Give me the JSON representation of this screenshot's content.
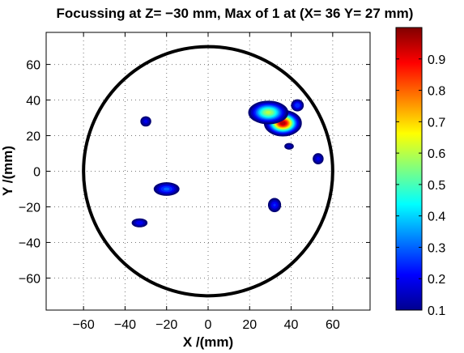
{
  "chart_data": {
    "type": "heatmap",
    "title": "Focussing at Z= −30 mm, Max of 1 at (X= 36 Y= 27 mm)",
    "xlabel": "X /(mm)",
    "ylabel": "Y /(mm)",
    "xlim": [
      -78,
      78
    ],
    "ylim": [
      -78,
      78
    ],
    "xticks": [
      -60,
      -40,
      -20,
      0,
      20,
      40,
      60
    ],
    "yticks": [
      -60,
      -40,
      -20,
      0,
      20,
      40,
      60
    ],
    "xtick_labels": [
      "−60",
      "−40",
      "−20",
      "0",
      "20",
      "40",
      "60"
    ],
    "ytick_labels": [
      "−60",
      "−40",
      "−20",
      "0",
      "20",
      "40",
      "60"
    ],
    "grid": true,
    "boundary_circle": {
      "center": [
        0,
        0
      ],
      "radius": 60
    },
    "colorbar": {
      "min": 0.1,
      "max": 1.0,
      "ticks": [
        0.1,
        0.2,
        0.3,
        0.4,
        0.5,
        0.6,
        0.7,
        0.8,
        0.9
      ],
      "tick_labels": [
        "0.1",
        "0.2",
        "0.3",
        "0.4",
        "0.5",
        "0.6",
        "0.7",
        "0.8",
        "0.9"
      ],
      "colormap": "jet"
    },
    "hotspots": [
      {
        "x": 36,
        "y": 27,
        "peak": 1.0,
        "sx": 4.2,
        "sy": 3.4
      },
      {
        "x": 29,
        "y": 33,
        "peak": 0.62,
        "sx": 5.0,
        "sy": 3.4
      },
      {
        "x": -20,
        "y": -10,
        "peak": 0.32,
        "sx": 4.0,
        "sy": 2.4
      },
      {
        "x": 32,
        "y": -19,
        "peak": 0.26,
        "sx": 2.2,
        "sy": 2.8
      },
      {
        "x": -33,
        "y": -29,
        "peak": 0.24,
        "sx": 2.8,
        "sy": 1.8
      },
      {
        "x": -30,
        "y": 28,
        "peak": 0.22,
        "sx": 2.0,
        "sy": 2.2
      },
      {
        "x": 53,
        "y": 7,
        "peak": 0.22,
        "sx": 2.0,
        "sy": 2.4
      },
      {
        "x": 39,
        "y": 14,
        "peak": 0.18,
        "sx": 2.0,
        "sy": 1.6
      },
      {
        "x": 43,
        "y": 37,
        "peak": 0.3,
        "sx": 2.0,
        "sy": 2.2
      }
    ]
  }
}
